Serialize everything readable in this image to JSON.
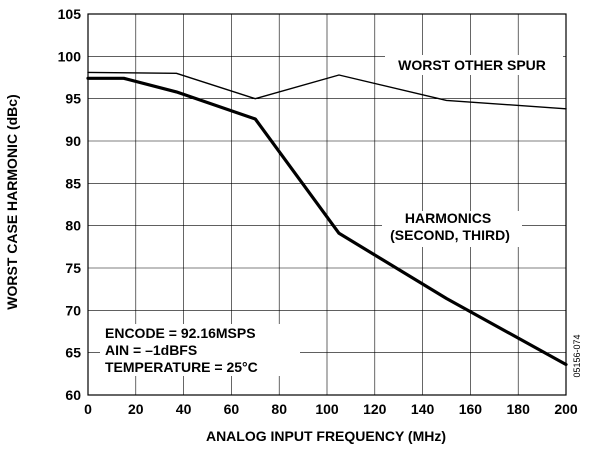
{
  "chart_data": {
    "type": "line",
    "xlabel": "ANALOG INPUT FREQUENCY (MHz)",
    "ylabel": "WORST CASE HARMONIC (dBc)",
    "xlim": [
      0,
      200
    ],
    "ylim": [
      60,
      105
    ],
    "x_ticks": [
      0,
      20,
      40,
      60,
      80,
      100,
      120,
      140,
      160,
      180,
      200
    ],
    "y_ticks": [
      60,
      65,
      70,
      75,
      80,
      85,
      90,
      95,
      100,
      105
    ],
    "grid": true,
    "series": [
      {
        "name": "WORST OTHER SPUR",
        "x": [
          0,
          37,
          70,
          105,
          150,
          200
        ],
        "y": [
          98.1,
          98.0,
          95.0,
          97.8,
          94.8,
          93.8
        ]
      },
      {
        "name": "HARMONICS\n(SECOND, THIRD)",
        "x": [
          0,
          15,
          37,
          70,
          105,
          150,
          200
        ],
        "y": [
          97.4,
          97.4,
          95.8,
          92.6,
          79.1,
          71.4,
          63.6
        ]
      }
    ],
    "annotation": [
      "ENCODE = 92.16MSPS",
      "AIN = –1dBFS",
      "TEMPERATURE = 25°C"
    ],
    "figure_id": "05156-074"
  }
}
